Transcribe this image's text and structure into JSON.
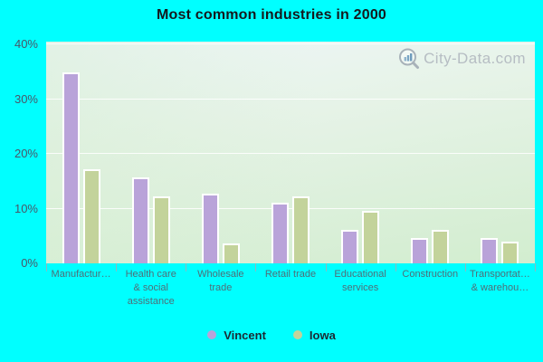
{
  "title": "Most common industries in 2000",
  "watermark_text": "City-Data.com",
  "colors": {
    "background": "#00ffff",
    "title_text": "#15181c",
    "plot_gradient_top": "#eff6f9",
    "plot_gradient_mid": "#e6f3e7",
    "plot_gradient_bottom": "#d2edcf",
    "grid_line": "#ffffff",
    "y_tick_text": "#4a5568",
    "x_tick_mark": "#8fb6c0",
    "x_label_text": "#4f6e78",
    "legend_text": "#1b2a33",
    "watermark_text_color": "#b6bdc3",
    "vincent_bar": "#b9a3d9",
    "iowa_bar": "#c3d39b"
  },
  "chart_data": {
    "type": "bar",
    "title": "Most common industries in 2000",
    "categories": [
      "Manufactur…",
      "Health care & social assistance",
      "Wholesale trade",
      "Retail trade",
      "Educational services",
      "Construction",
      "Transportat… & warehou…"
    ],
    "category_label_lines": [
      [
        "Manufactur…"
      ],
      [
        "Health care",
        "& social",
        "assistance"
      ],
      [
        "Wholesale",
        "trade"
      ],
      [
        "Retail trade"
      ],
      [
        "Educational",
        "services"
      ],
      [
        "Construction"
      ],
      [
        "Transportat…",
        "& warehou…"
      ]
    ],
    "series": [
      {
        "name": "Vincent",
        "color": "#b9a3d9",
        "values": [
          34.8,
          15.7,
          12.7,
          11.1,
          6.2,
          4.7,
          4.7
        ]
      },
      {
        "name": "Iowa",
        "color": "#c3d39b",
        "values": [
          17.2,
          12.2,
          3.6,
          12.2,
          9.6,
          6.2,
          4.0
        ]
      }
    ],
    "unit": "%",
    "ylim": [
      0,
      40
    ],
    "yticks": [
      {
        "value": 0,
        "label": "0%"
      },
      {
        "value": 10,
        "label": "10%"
      },
      {
        "value": 20,
        "label": "20%"
      },
      {
        "value": 30,
        "label": "30%"
      },
      {
        "value": 40,
        "label": "40%"
      }
    ],
    "grid": true,
    "legend_position": "bottom"
  }
}
